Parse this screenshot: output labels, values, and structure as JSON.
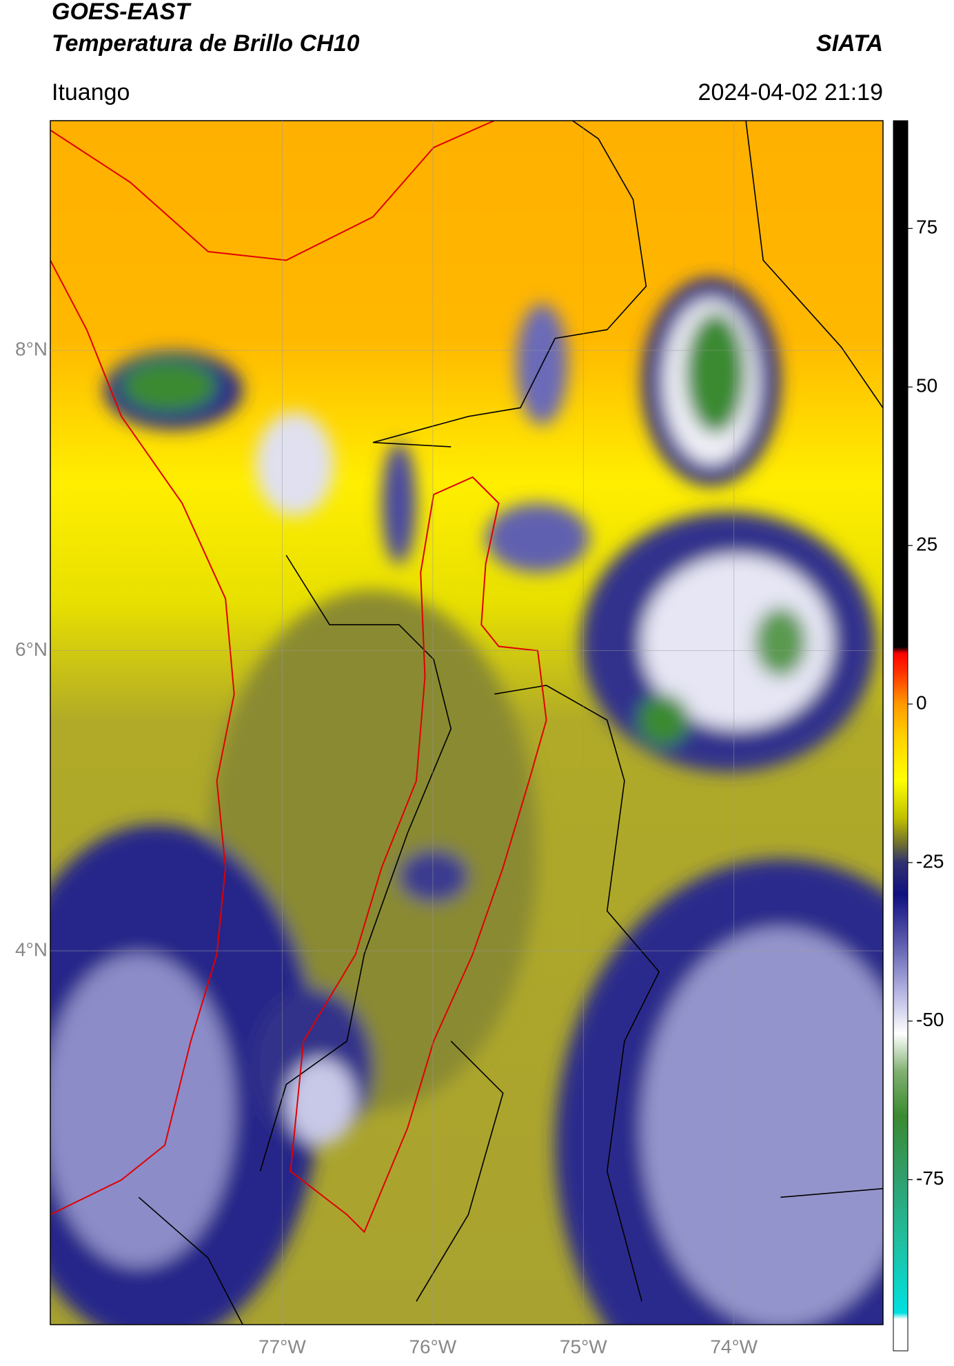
{
  "header": {
    "title": "GOES-EAST",
    "subtitle": "Temperatura de Brillo CH10",
    "agency": "SIATA",
    "location": "Ituango",
    "datetime": "2024-04-02 21:19"
  },
  "map": {
    "xlim": [
      -78.54,
      -73.01
    ],
    "ylim": [
      1.51,
      9.53
    ],
    "xticks": [
      {
        "value": -77,
        "label": "77°W"
      },
      {
        "value": -76,
        "label": "76°W"
      },
      {
        "value": -75,
        "label": "75°W"
      },
      {
        "value": -74,
        "label": "74°W"
      }
    ],
    "yticks": [
      {
        "value": 8,
        "label": "8°N"
      },
      {
        "value": 6,
        "label": "6°N"
      },
      {
        "value": 4,
        "label": "4°N"
      }
    ],
    "grid": true
  },
  "colorbar": {
    "lim": [
      -102,
      92
    ],
    "ticks": [
      75,
      50,
      25,
      0,
      -25,
      -50,
      -75
    ],
    "stops": [
      {
        "value": -102,
        "color": "#ffffff"
      },
      {
        "value": -97,
        "color": "#ffffff"
      },
      {
        "value": -96,
        "color": "#00e0e0"
      },
      {
        "value": -85,
        "color": "#20c0a0"
      },
      {
        "value": -75,
        "color": "#30a070"
      },
      {
        "value": -65,
        "color": "#3a8a30"
      },
      {
        "value": -58,
        "color": "#80b070"
      },
      {
        "value": -52,
        "color": "#ffffff"
      },
      {
        "value": -45,
        "color": "#b0b0e0"
      },
      {
        "value": -38,
        "color": "#6060b0"
      },
      {
        "value": -30,
        "color": "#101080"
      },
      {
        "value": -25,
        "color": "#303070"
      },
      {
        "value": -22,
        "color": "#707030"
      },
      {
        "value": -18,
        "color": "#c0c000"
      },
      {
        "value": -12,
        "color": "#ffff00"
      },
      {
        "value": -5,
        "color": "#ffd000"
      },
      {
        "value": 0,
        "color": "#ff9900"
      },
      {
        "value": 5,
        "color": "#ff3300"
      },
      {
        "value": 8,
        "color": "#ff0000"
      },
      {
        "value": 9,
        "color": "#000000"
      },
      {
        "value": 92,
        "color": "#000000"
      }
    ]
  }
}
